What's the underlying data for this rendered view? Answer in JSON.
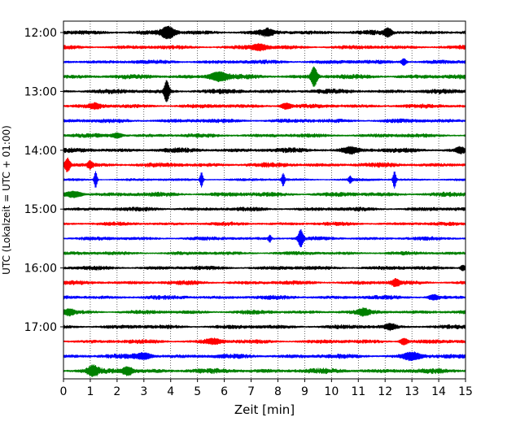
{
  "chart_data": {
    "type": "line",
    "subtype": "helicorder",
    "title": "",
    "xlabel": "Zeit  [min]",
    "ylabel": "UTC (Lokalzeit = UTC + 01:00)",
    "xlim": [
      0,
      15
    ],
    "x_ticks": [
      0,
      1,
      2,
      3,
      4,
      5,
      6,
      7,
      8,
      9,
      10,
      11,
      12,
      13,
      14,
      15
    ],
    "y_tick_labels": [
      "12:00",
      "13:00",
      "14:00",
      "15:00",
      "16:00",
      "17:00"
    ],
    "vertical_grid": true,
    "grid_style": "dotted",
    "trace_interval_minutes": 15,
    "start_time": "12:00",
    "color_cycle": [
      "#000000",
      "#ff0000",
      "#0000ff",
      "#008000"
    ],
    "rows": [
      {
        "time": "12:00",
        "color": "#000000",
        "noise": 0.9,
        "events": [
          {
            "x": 3.9,
            "amp": 5,
            "dur": 0.25
          },
          {
            "x": 7.6,
            "amp": 2.5,
            "dur": 0.2
          },
          {
            "x": 12.1,
            "amp": 3.5,
            "dur": 0.15
          }
        ]
      },
      {
        "time": "12:15",
        "color": "#ff0000",
        "noise": 0.8,
        "events": [
          {
            "x": 7.3,
            "amp": 2.5,
            "dur": 0.3
          }
        ]
      },
      {
        "time": "12:30",
        "color": "#0000ff",
        "noise": 0.8,
        "events": [
          {
            "x": 12.7,
            "amp": 3,
            "dur": 0.1
          }
        ]
      },
      {
        "time": "12:45",
        "color": "#008000",
        "noise": 0.9,
        "events": [
          {
            "x": 5.8,
            "amp": 4,
            "dur": 0.35
          },
          {
            "x": 9.35,
            "amp": 9,
            "dur": 0.12
          }
        ]
      },
      {
        "time": "13:00",
        "color": "#000000",
        "noise": 0.9,
        "events": [
          {
            "x": 3.85,
            "amp": 10,
            "dur": 0.1
          }
        ]
      },
      {
        "time": "13:15",
        "color": "#ff0000",
        "noise": 0.8,
        "events": [
          {
            "x": 1.2,
            "amp": 2,
            "dur": 0.2
          },
          {
            "x": 8.3,
            "amp": 2.5,
            "dur": 0.2
          }
        ]
      },
      {
        "time": "13:30",
        "color": "#0000ff",
        "noise": 0.8,
        "events": []
      },
      {
        "time": "13:45",
        "color": "#008000",
        "noise": 0.8,
        "events": [
          {
            "x": 2.0,
            "amp": 2,
            "dur": 0.2
          }
        ]
      },
      {
        "time": "14:00",
        "color": "#000000",
        "noise": 0.9,
        "events": [
          {
            "x": 10.7,
            "amp": 2.5,
            "dur": 0.3
          },
          {
            "x": 14.8,
            "amp": 2.5,
            "dur": 0.15
          }
        ]
      },
      {
        "time": "14:15",
        "color": "#ff0000",
        "noise": 0.9,
        "events": [
          {
            "x": 0.15,
            "amp": 6,
            "dur": 0.1
          },
          {
            "x": 1.0,
            "amp": 3,
            "dur": 0.1
          }
        ]
      },
      {
        "time": "14:30",
        "color": "#0000ff",
        "noise": 0.5,
        "events": [
          {
            "x": 1.2,
            "amp": 8,
            "dur": 0.06
          },
          {
            "x": 5.15,
            "amp": 7,
            "dur": 0.06
          },
          {
            "x": 8.2,
            "amp": 6,
            "dur": 0.06
          },
          {
            "x": 10.7,
            "amp": 3,
            "dur": 0.06
          },
          {
            "x": 12.35,
            "amp": 8,
            "dur": 0.06
          }
        ]
      },
      {
        "time": "14:45",
        "color": "#008000",
        "noise": 0.9,
        "events": [
          {
            "x": 0.4,
            "amp": 2.5,
            "dur": 0.3
          }
        ]
      },
      {
        "time": "15:00",
        "color": "#000000",
        "noise": 0.8,
        "events": []
      },
      {
        "time": "15:15",
        "color": "#ff0000",
        "noise": 0.7,
        "events": []
      },
      {
        "time": "15:30",
        "color": "#0000ff",
        "noise": 0.7,
        "events": [
          {
            "x": 7.7,
            "amp": 3,
            "dur": 0.06
          },
          {
            "x": 8.85,
            "amp": 8,
            "dur": 0.1
          }
        ]
      },
      {
        "time": "15:45",
        "color": "#008000",
        "noise": 0.7,
        "events": []
      },
      {
        "time": "16:00",
        "color": "#000000",
        "noise": 0.8,
        "events": [
          {
            "x": 14.9,
            "amp": 2.5,
            "dur": 0.1
          }
        ]
      },
      {
        "time": "16:15",
        "color": "#ff0000",
        "noise": 0.8,
        "events": [
          {
            "x": 12.4,
            "amp": 3,
            "dur": 0.15
          }
        ]
      },
      {
        "time": "16:30",
        "color": "#0000ff",
        "noise": 0.8,
        "events": [
          {
            "x": 13.8,
            "amp": 2,
            "dur": 0.2
          }
        ]
      },
      {
        "time": "16:45",
        "color": "#008000",
        "noise": 0.8,
        "events": [
          {
            "x": 0.2,
            "amp": 2.5,
            "dur": 0.2
          },
          {
            "x": 11.2,
            "amp": 2.5,
            "dur": 0.2
          }
        ]
      },
      {
        "time": "17:00",
        "color": "#000000",
        "noise": 0.8,
        "events": [
          {
            "x": 12.2,
            "amp": 2.5,
            "dur": 0.2
          }
        ]
      },
      {
        "time": "17:15",
        "color": "#ff0000",
        "noise": 0.8,
        "events": [
          {
            "x": 5.6,
            "amp": 2,
            "dur": 0.3
          },
          {
            "x": 12.7,
            "amp": 3,
            "dur": 0.15
          }
        ]
      },
      {
        "time": "17:30",
        "color": "#0000ff",
        "noise": 0.9,
        "events": [
          {
            "x": 3.0,
            "amp": 2.5,
            "dur": 0.3
          },
          {
            "x": 13.0,
            "amp": 3,
            "dur": 0.3
          }
        ]
      },
      {
        "time": "17:45",
        "color": "#008000",
        "noise": 1.0,
        "events": [
          {
            "x": 1.1,
            "amp": 4,
            "dur": 0.2
          },
          {
            "x": 2.4,
            "amp": 3.5,
            "dur": 0.2
          }
        ]
      }
    ]
  }
}
